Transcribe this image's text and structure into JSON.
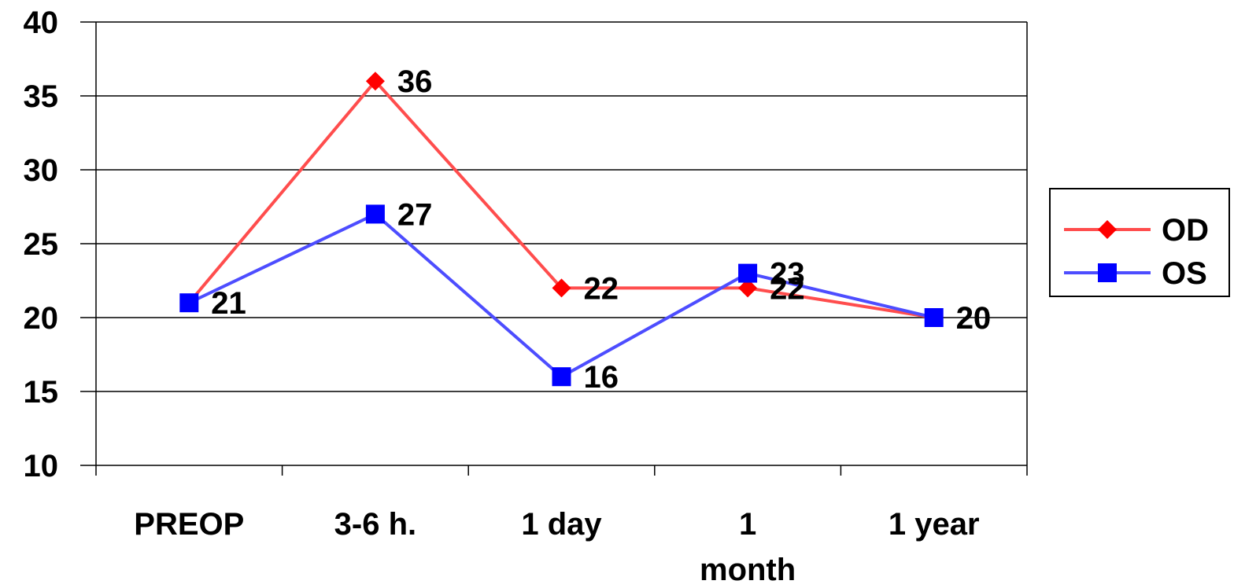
{
  "chart_data": {
    "type": "line",
    "categories": [
      "PREOP",
      "3-6 h.",
      "1 day",
      "1 month",
      "1 year"
    ],
    "category_lines": [
      [
        "PREOP"
      ],
      [
        "3-6 h."
      ],
      [
        "1 day"
      ],
      [
        "1",
        "month"
      ],
      [
        "1 year"
      ]
    ],
    "series": [
      {
        "name": "OD",
        "values": [
          21,
          36,
          22,
          22,
          20
        ],
        "color": "#ff0000",
        "line_color": "#ff4d4d",
        "marker": "diamond"
      },
      {
        "name": "OS",
        "values": [
          21,
          27,
          16,
          23,
          20
        ],
        "color": "#0000ff",
        "line_color": "#4d4dff",
        "marker": "square"
      }
    ],
    "ylim": [
      10,
      40
    ],
    "yticks": [
      10,
      15,
      20,
      25,
      30,
      35,
      40
    ],
    "grid": true,
    "legend": "right",
    "title": "",
    "xlabel": "",
    "ylabel": ""
  }
}
